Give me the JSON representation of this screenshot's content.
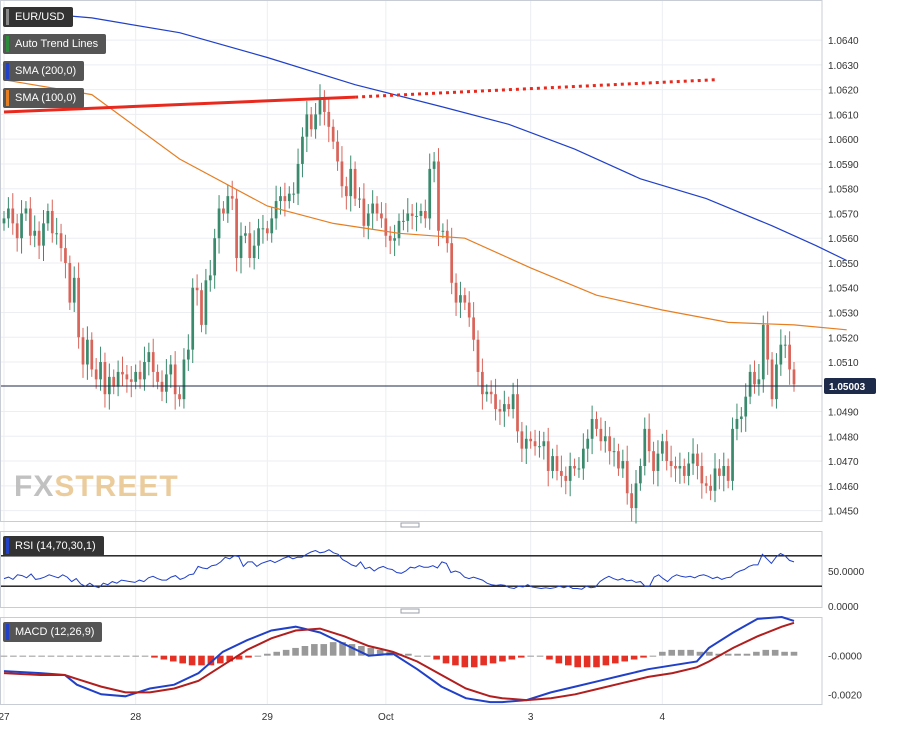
{
  "chart_data": [
    {
      "type": "candlestick",
      "title": "EUR/USD",
      "indicators": [
        "Auto Trend Lines",
        "SMA (200,0)",
        "SMA (100,0)"
      ],
      "indicator_colors": [
        "#2a8c3a",
        "#2040c8",
        "#e67e22"
      ],
      "x_ticks": [
        "27",
        "28",
        "29",
        "Oct",
        "3",
        "4"
      ],
      "x_tick_index": [
        0,
        30,
        60,
        87,
        120,
        150
      ],
      "y_ticks": [
        "1.0450",
        "1.0460",
        "1.0470",
        "1.0480",
        "1.0490",
        "1.0510",
        "1.0520",
        "1.0530",
        "1.0540",
        "1.0550",
        "1.0560",
        "1.0570",
        "1.0580",
        "1.0590",
        "1.0600",
        "1.0610",
        "1.0620",
        "1.0630",
        "1.0640"
      ],
      "ylim": [
        1.0447,
        1.0655
      ],
      "last_price": "1.05003",
      "last_price_value": 1.05003,
      "close": [
        1.0568,
        1.0572,
        1.0566,
        1.056,
        1.057,
        1.0572,
        1.0561,
        1.0563,
        1.0557,
        1.0566,
        1.0571,
        1.0562,
        1.0562,
        1.0556,
        1.055,
        1.0534,
        1.0544,
        1.052,
        1.0509,
        1.0519,
        1.0507,
        1.0503,
        1.051,
        1.0497,
        1.0504,
        1.05,
        1.0506,
        1.0505,
        1.0503,
        1.0502,
        1.0506,
        1.0503,
        1.051,
        1.0514,
        1.0506,
        1.0502,
        1.0498,
        1.0505,
        1.0509,
        1.0497,
        1.0495,
        1.0511,
        1.0515,
        1.054,
        1.0539,
        1.0525,
        1.0543,
        1.0545,
        1.056,
        1.0572,
        1.057,
        1.0577,
        1.0576,
        1.0552,
        1.0561,
        1.0562,
        1.0552,
        1.0557,
        1.0564,
        1.0564,
        1.0562,
        1.0568,
        1.0575,
        1.0577,
        1.0575,
        1.0578,
        1.0578,
        1.059,
        1.0601,
        1.061,
        1.0604,
        1.061,
        1.0616,
        1.0611,
        1.0605,
        1.0599,
        1.0591,
        1.0581,
        1.0577,
        1.0588,
        1.0576,
        1.0576,
        1.0565,
        1.057,
        1.0574,
        1.057,
        1.0568,
        1.0561,
        1.0559,
        1.056,
        1.0567,
        1.0567,
        1.057,
        1.0569,
        1.0569,
        1.0571,
        1.0568,
        1.0588,
        1.0591,
        1.0563,
        1.0563,
        1.0558,
        1.0542,
        1.0534,
        1.0537,
        1.0534,
        1.0528,
        1.0519,
        1.0506,
        1.0497,
        1.0498,
        1.0497,
        1.0491,
        1.049,
        1.0493,
        1.0491,
        1.0497,
        1.0482,
        1.0475,
        1.0479,
        1.0478,
        1.0476,
        1.0476,
        1.0478,
        1.0466,
        1.0472,
        1.0466,
        1.0464,
        1.0462,
        1.0468,
        1.0467,
        1.0467,
        1.0475,
        1.0479,
        1.0487,
        1.0483,
        1.0478,
        1.048,
        1.0474,
        1.0474,
        1.0467,
        1.047,
        1.0457,
        1.0451,
        1.0461,
        1.0468,
        1.0483,
        1.0474,
        1.0466,
        1.0473,
        1.0478,
        1.047,
        1.0468,
        1.0467,
        1.0468,
        1.0464,
        1.0469,
        1.0473,
        1.0468,
        1.0461,
        1.046,
        1.0458,
        1.0467,
        1.0464,
        1.0468,
        1.0462,
        1.0483,
        1.0487,
        1.0488,
        1.0496,
        1.0506,
        1.0501,
        1.0503,
        1.0525,
        1.0511,
        1.0495,
        1.0509,
        1.0517,
        1.0517,
        1.0507,
        1.0501
      ],
      "sma200": [
        [
          0,
          1.0652
        ],
        [
          20,
          1.0649
        ],
        [
          40,
          1.0643
        ],
        [
          60,
          1.0633
        ],
        [
          80,
          1.0622
        ],
        [
          100,
          1.0613
        ],
        [
          115,
          1.0606
        ],
        [
          130,
          1.0596
        ],
        [
          145,
          1.0584
        ],
        [
          160,
          1.0576
        ],
        [
          175,
          1.0565
        ],
        [
          185,
          1.0557
        ],
        [
          192,
          1.0551
        ]
      ],
      "sma100": [
        [
          0,
          1.0624
        ],
        [
          20,
          1.0618
        ],
        [
          40,
          1.0592
        ],
        [
          60,
          1.0573
        ],
        [
          75,
          1.0566
        ],
        [
          90,
          1.0562
        ],
        [
          105,
          1.056
        ],
        [
          120,
          1.0548
        ],
        [
          135,
          1.0537
        ],
        [
          150,
          1.0531
        ],
        [
          165,
          1.0526
        ],
        [
          180,
          1.0525
        ],
        [
          192,
          1.0523
        ]
      ],
      "trend_line": [
        [
          0,
          1.0611
        ],
        [
          80,
          1.0617
        ],
        [
          162,
          1.0624
        ]
      ]
    },
    {
      "type": "line",
      "title": "RSI (14,70,30,1)",
      "y_ticks": [
        "50.0000",
        "0.0000"
      ],
      "ylim": [
        0,
        100
      ],
      "levels": [
        70,
        30
      ],
      "values": [
        40,
        42,
        39,
        45,
        44,
        41,
        46,
        39,
        40,
        42,
        45,
        43,
        41,
        45,
        42,
        36,
        40,
        33,
        30,
        34,
        30,
        28,
        34,
        32,
        36,
        34,
        38,
        37,
        36,
        35,
        38,
        36,
        41,
        43,
        40,
        38,
        38,
        42,
        44,
        39,
        41,
        45,
        46,
        56,
        54,
        53,
        57,
        58,
        62,
        68,
        66,
        70,
        69,
        56,
        62,
        62,
        56,
        60,
        62,
        64,
        61,
        64,
        67,
        69,
        66,
        68,
        68,
        72,
        75,
        77,
        74,
        75,
        78,
        74,
        72,
        65,
        62,
        58,
        56,
        62,
        53,
        55,
        50,
        54,
        56,
        53,
        52,
        48,
        47,
        50,
        55,
        54,
        57,
        55,
        55,
        57,
        54,
        62,
        60,
        48,
        50,
        48,
        42,
        40,
        42,
        40,
        38,
        34,
        32,
        31,
        32,
        31,
        28,
        27,
        30,
        29,
        32,
        29,
        28,
        27,
        28,
        27,
        28,
        30,
        28,
        30,
        27,
        27,
        26,
        30,
        28,
        29,
        36,
        40,
        43,
        40,
        38,
        40,
        37,
        38,
        35,
        36,
        30,
        30,
        42,
        45,
        40,
        36,
        42,
        45,
        43,
        42,
        43,
        41,
        44,
        45,
        43,
        40,
        42,
        39,
        41,
        42,
        47,
        50,
        52,
        56,
        58,
        58,
        72,
        66,
        60,
        68,
        73,
        70,
        64,
        62
      ]
    },
    {
      "type": "line",
      "title": "MACD (12,26,9)",
      "y_ticks": [
        "-0.0000",
        "-0.0020"
      ],
      "ylim": [
        -0.0025,
        0.002
      ],
      "macd": [
        [
          0,
          -0.0008
        ],
        [
          15,
          -0.0009
        ],
        [
          25,
          -0.001
        ],
        [
          30,
          -0.0015
        ],
        [
          40,
          -0.002
        ],
        [
          50,
          -0.0021
        ],
        [
          60,
          -0.0017
        ],
        [
          70,
          -0.0015
        ],
        [
          80,
          -0.0009
        ],
        [
          90,
          0.0002
        ],
        [
          100,
          0.0008
        ],
        [
          110,
          0.0013
        ],
        [
          120,
          0.0015
        ],
        [
          130,
          0.0012
        ],
        [
          140,
          0.0006
        ],
        [
          150,
          0.0
        ],
        [
          160,
          0.0001
        ],
        [
          170,
          -0.0007
        ],
        [
          180,
          -0.0016
        ],
        [
          190,
          -0.0022
        ],
        [
          200,
          -0.0024
        ],
        [
          205,
          -0.0024
        ],
        [
          215,
          -0.0023
        ],
        [
          225,
          -0.0019
        ],
        [
          235,
          -0.0016
        ],
        [
          245,
          -0.0013
        ],
        [
          255,
          -0.001
        ],
        [
          265,
          -0.0007
        ],
        [
          275,
          -0.0005
        ],
        [
          285,
          -0.0003
        ],
        [
          290,
          0.0004
        ],
        [
          300,
          0.0012
        ],
        [
          310,
          0.0019
        ],
        [
          320,
          0.002
        ],
        [
          325,
          0.0018
        ]
      ],
      "signal": [
        [
          0,
          -0.0009
        ],
        [
          15,
          -0.001
        ],
        [
          25,
          -0.001
        ],
        [
          30,
          -0.0012
        ],
        [
          40,
          -0.0016
        ],
        [
          50,
          -0.0019
        ],
        [
          60,
          -0.0019
        ],
        [
          70,
          -0.0017
        ],
        [
          80,
          -0.0013
        ],
        [
          90,
          -0.0005
        ],
        [
          100,
          0.0003
        ],
        [
          110,
          0.0009
        ],
        [
          120,
          0.0013
        ],
        [
          130,
          0.0014
        ],
        [
          140,
          0.001
        ],
        [
          150,
          0.0005
        ],
        [
          160,
          0.0002
        ],
        [
          170,
          -0.0003
        ],
        [
          180,
          -0.001
        ],
        [
          190,
          -0.0017
        ],
        [
          200,
          -0.0021
        ],
        [
          205,
          -0.0022
        ],
        [
          215,
          -0.0023
        ],
        [
          225,
          -0.0022
        ],
        [
          235,
          -0.002
        ],
        [
          245,
          -0.0017
        ],
        [
          255,
          -0.0014
        ],
        [
          265,
          -0.0011
        ],
        [
          275,
          -0.0009
        ],
        [
          285,
          -0.0006
        ],
        [
          290,
          -0.0003
        ],
        [
          300,
          0.0004
        ],
        [
          310,
          0.001
        ],
        [
          320,
          0.0015
        ],
        [
          325,
          0.0017
        ]
      ],
      "histogram": [
        0,
        0,
        0,
        0,
        0,
        0,
        0,
        0,
        0,
        0,
        0,
        0,
        0,
        0,
        0,
        0,
        -0.0001,
        -0.0002,
        -0.0003,
        -0.0004,
        -0.0005,
        -0.0005,
        -0.0005,
        -0.0004,
        -0.0003,
        -0.0002,
        -0.0001,
        0,
        0.0001,
        0.0002,
        0.0003,
        0.0004,
        0.0005,
        0.0006,
        0.0006,
        0.0007,
        0.0007,
        0.0006,
        0.0005,
        0.0004,
        0.0003,
        0.0002,
        0.0001,
        0.0001,
        0,
        0,
        -0.0002,
        -0.0004,
        -0.0005,
        -0.0006,
        -0.0006,
        -0.0005,
        -0.0004,
        -0.0003,
        -0.0002,
        -0.0001,
        0,
        0,
        -0.0002,
        -0.0004,
        -0.0005,
        -0.0006,
        -0.0006,
        -0.0006,
        -0.0005,
        -0.0004,
        -0.0003,
        -0.0002,
        -0.0001,
        0,
        0.0002,
        0.0003,
        0.0003,
        0.0003,
        0.0002,
        0.0002,
        0.0001,
        0.0001,
        0.0001,
        0.0001,
        0.0002,
        0.0003,
        0.0003,
        0.0002,
        0.0002
      ]
    }
  ],
  "watermark": {
    "part1": "FX",
    "part2": "STREET"
  }
}
